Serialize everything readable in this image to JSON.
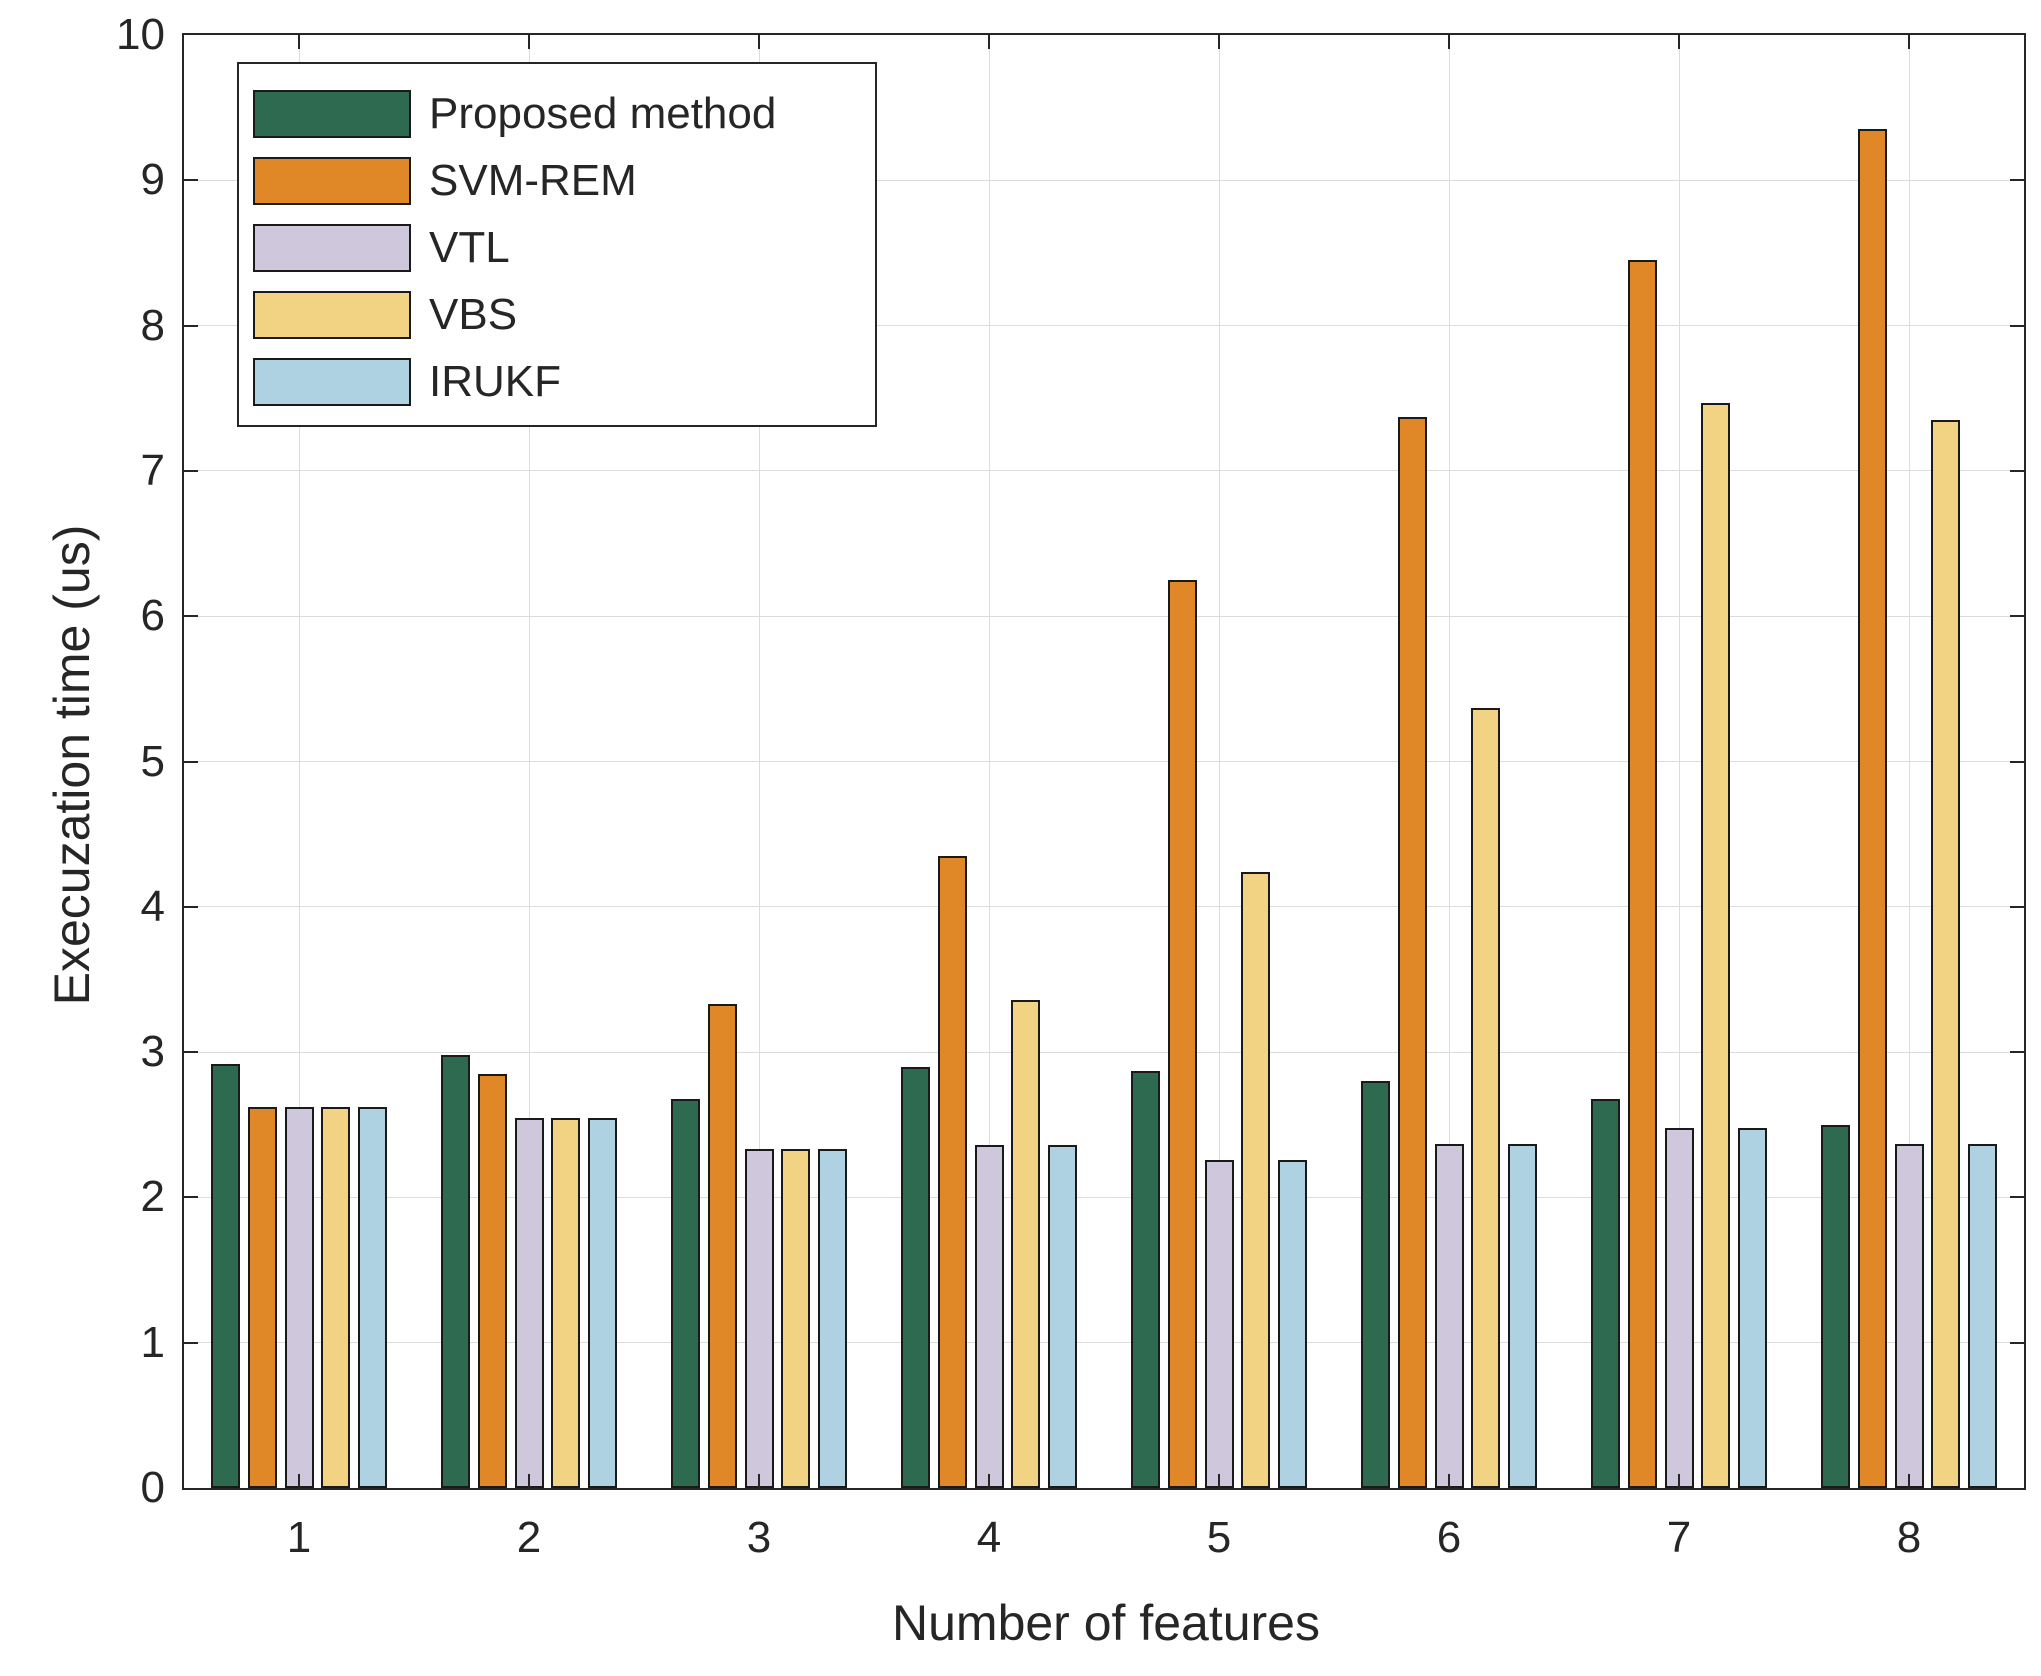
{
  "colors": {
    "background": "#FFFFFF",
    "axis": "#262626",
    "grid": "#DCDCDC",
    "bar_edge": "#1A1A1A"
  },
  "chart_data": {
    "type": "bar",
    "title": "",
    "xlabel": "Number of features",
    "ylabel": "Execuzation time (us)",
    "categories": [
      "1",
      "2",
      "3",
      "4",
      "5",
      "6",
      "7",
      "8"
    ],
    "y_ticks": [
      0,
      1,
      2,
      3,
      4,
      5,
      6,
      7,
      8,
      9,
      10
    ],
    "ylim": [
      0,
      10
    ],
    "grid": true,
    "legend_position": "top-left",
    "series": [
      {
        "name": "Proposed method",
        "color": "#2D6A4F",
        "values": [
          2.92,
          2.98,
          2.68,
          2.9,
          2.87,
          2.8,
          2.68,
          2.5
        ]
      },
      {
        "name": "SVM-REM",
        "color": "#E08828",
        "values": [
          2.62,
          2.85,
          3.33,
          4.35,
          6.25,
          7.37,
          8.45,
          9.35
        ]
      },
      {
        "name": "VTL",
        "color": "#CFC7DB",
        "values": [
          2.62,
          2.55,
          2.33,
          2.36,
          2.26,
          2.37,
          2.48,
          2.37
        ]
      },
      {
        "name": "VBS",
        "color": "#F2D383",
        "values": [
          2.62,
          2.55,
          2.33,
          3.36,
          4.24,
          5.37,
          7.47,
          7.35
        ]
      },
      {
        "name": "IRUKF",
        "color": "#AFD2E3",
        "values": [
          2.62,
          2.55,
          2.33,
          2.36,
          2.26,
          2.37,
          2.48,
          2.37
        ]
      }
    ]
  }
}
